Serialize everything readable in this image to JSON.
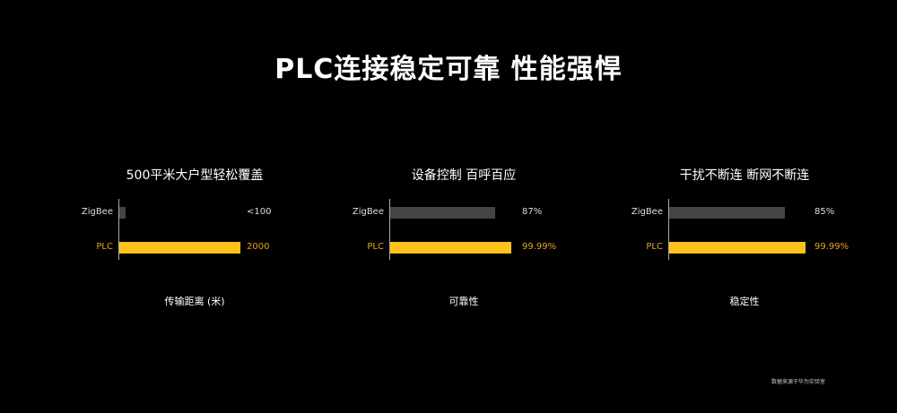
{
  "title": "PLC连接稳定可靠 性能强悍",
  "footnote": "数据来源于华为实验室",
  "colors": {
    "plc": "#FFC21A",
    "zigbee": "#444444",
    "plc_label": "#E8A020",
    "background": "#000000"
  },
  "chart_data": [
    {
      "type": "bar",
      "orientation": "horizontal",
      "title": "500平米大户型轻松覆盖",
      "xlabel": "传输距离 (米)",
      "categories": [
        "ZigBee",
        "PLC"
      ],
      "values": [
        100,
        2000
      ],
      "value_labels": [
        "<100",
        "2000"
      ]
    },
    {
      "type": "bar",
      "orientation": "horizontal",
      "title": "设备控制 百呼百应",
      "xlabel": "可靠性",
      "categories": [
        "ZigBee",
        "PLC"
      ],
      "values": [
        87,
        99.99
      ],
      "value_labels": [
        "87%",
        "99.99%"
      ]
    },
    {
      "type": "bar",
      "orientation": "horizontal",
      "title": "干扰不断连 断网不断连",
      "xlabel": "稳定性",
      "categories": [
        "ZigBee",
        "PLC"
      ],
      "values": [
        85,
        99.99
      ],
      "value_labels": [
        "85%",
        "99.99%"
      ]
    }
  ]
}
